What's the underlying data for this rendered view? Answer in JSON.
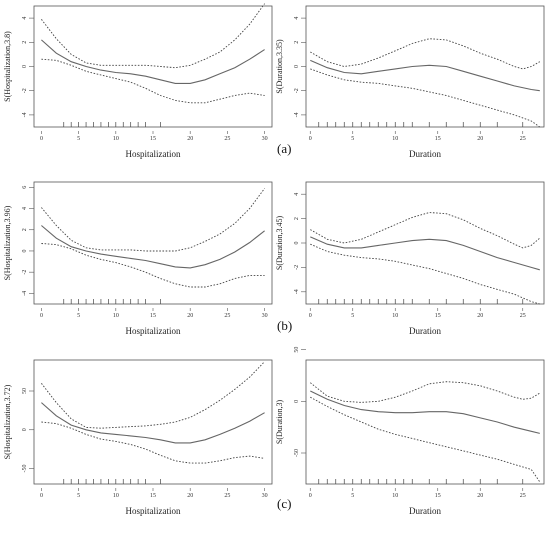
{
  "chart_data": [
    {
      "type": "line",
      "row": 0,
      "col": 0,
      "xlabel": "Hospitalization",
      "ylabel": "S(Hospitalization,3.8)",
      "xticks": [
        0,
        5,
        10,
        15,
        20,
        25,
        30
      ],
      "yticks": [
        -4,
        -2,
        0,
        2,
        4
      ],
      "xlim": [
        -1,
        31
      ],
      "ylim": [
        -5,
        5
      ],
      "rug": [
        3,
        4,
        5,
        6,
        7,
        8,
        9,
        10,
        11,
        12,
        13,
        14,
        16
      ],
      "series": [
        {
          "style": "solid",
          "x": [
            0,
            2,
            4,
            6,
            8,
            10,
            12,
            14,
            16,
            18,
            20,
            22,
            24,
            26,
            28,
            30
          ],
          "y": [
            2.2,
            1.1,
            0.4,
            0,
            -0.3,
            -0.5,
            -0.6,
            -0.8,
            -1.1,
            -1.4,
            -1.4,
            -1.1,
            -0.6,
            -0.1,
            0.6,
            1.4
          ]
        },
        {
          "style": "dotted",
          "x": [
            0,
            2,
            4,
            6,
            8,
            10,
            12,
            14,
            16,
            18,
            20,
            22,
            24,
            26,
            28,
            30
          ],
          "y": [
            3.9,
            2.3,
            1.0,
            0.3,
            0.1,
            0.1,
            0.1,
            0.1,
            0,
            -0.1,
            0.1,
            0.6,
            1.2,
            2.2,
            3.5,
            5.2
          ]
        },
        {
          "style": "dotted",
          "x": [
            0,
            2,
            4,
            6,
            8,
            10,
            12,
            14,
            16,
            18,
            20,
            22,
            24,
            26,
            28,
            30
          ],
          "y": [
            0.6,
            0.5,
            0.1,
            -0.4,
            -0.7,
            -1.0,
            -1.3,
            -1.8,
            -2.4,
            -2.8,
            -3.0,
            -3.0,
            -2.7,
            -2.4,
            -2.2,
            -2.4
          ]
        }
      ]
    },
    {
      "type": "line",
      "row": 0,
      "col": 1,
      "xlabel": "Duration",
      "ylabel": "S(Duration,3.35)",
      "xticks": [
        0,
        5,
        10,
        15,
        20,
        25
      ],
      "yticks": [
        -4,
        -2,
        0,
        2,
        4
      ],
      "xlim": [
        -0.5,
        27.5
      ],
      "ylim": [
        -5,
        5
      ],
      "rug": [
        1,
        2,
        3,
        4,
        5,
        6,
        7,
        8,
        9,
        10,
        11,
        12,
        14,
        16,
        18,
        20,
        22,
        25
      ],
      "series": [
        {
          "style": "solid",
          "x": [
            0,
            2,
            4,
            6,
            8,
            10,
            12,
            14,
            16,
            18,
            20,
            22,
            24,
            26,
            27
          ],
          "y": [
            0.5,
            -0.1,
            -0.5,
            -0.6,
            -0.4,
            -0.2,
            0,
            0.1,
            0,
            -0.4,
            -0.8,
            -1.2,
            -1.6,
            -1.9,
            -2.0
          ]
        },
        {
          "style": "dotted",
          "x": [
            0,
            2,
            4,
            6,
            8,
            10,
            12,
            14,
            16,
            18,
            20,
            22,
            24,
            25,
            26,
            27
          ],
          "y": [
            1.2,
            0.4,
            0,
            0.2,
            0.7,
            1.3,
            1.9,
            2.3,
            2.2,
            1.7,
            1.1,
            0.6,
            0,
            -0.2,
            0,
            0.4
          ]
        },
        {
          "style": "dotted",
          "x": [
            0,
            2,
            4,
            6,
            8,
            10,
            12,
            14,
            16,
            18,
            20,
            22,
            24,
            26,
            27
          ],
          "y": [
            -0.2,
            -0.7,
            -1.1,
            -1.3,
            -1.4,
            -1.6,
            -1.8,
            -2.1,
            -2.4,
            -2.8,
            -3.2,
            -3.6,
            -4.0,
            -4.5,
            -5.0
          ]
        }
      ]
    },
    {
      "type": "line",
      "row": 1,
      "col": 0,
      "xlabel": "Hospitalization",
      "ylabel": "S(Hospitalization,3.96)",
      "xticks": [
        0,
        5,
        10,
        15,
        20,
        25,
        30
      ],
      "yticks": [
        -4,
        -2,
        0,
        2,
        4,
        6
      ],
      "xlim": [
        -1,
        31
      ],
      "ylim": [
        -5,
        6.5
      ],
      "rug": [
        3,
        4,
        5,
        6,
        7,
        8,
        9,
        10,
        11,
        12,
        13,
        14,
        16
      ],
      "series": [
        {
          "style": "solid",
          "x": [
            0,
            2,
            4,
            6,
            8,
            10,
            12,
            14,
            16,
            18,
            20,
            22,
            24,
            26,
            28,
            30
          ],
          "y": [
            2.4,
            1.2,
            0.4,
            0,
            -0.3,
            -0.5,
            -0.7,
            -0.9,
            -1.2,
            -1.5,
            -1.6,
            -1.3,
            -0.8,
            -0.1,
            0.8,
            1.9
          ]
        },
        {
          "style": "dotted",
          "x": [
            0,
            2,
            4,
            6,
            8,
            10,
            12,
            14,
            16,
            18,
            20,
            22,
            24,
            26,
            28,
            30
          ],
          "y": [
            4.1,
            2.4,
            1.0,
            0.3,
            0.1,
            0.1,
            0.1,
            0,
            0,
            0,
            0.3,
            0.9,
            1.6,
            2.6,
            4.0,
            5.9
          ]
        },
        {
          "style": "dotted",
          "x": [
            0,
            2,
            4,
            6,
            8,
            10,
            12,
            14,
            16,
            18,
            20,
            22,
            24,
            26,
            28,
            30
          ],
          "y": [
            0.7,
            0.6,
            0.2,
            -0.4,
            -0.8,
            -1.1,
            -1.5,
            -2.0,
            -2.6,
            -3.1,
            -3.4,
            -3.4,
            -3.1,
            -2.6,
            -2.3,
            -2.3
          ]
        }
      ]
    },
    {
      "type": "line",
      "row": 1,
      "col": 1,
      "xlabel": "Duration",
      "ylabel": "S(Duration,3.45)",
      "xticks": [
        0,
        5,
        10,
        15,
        20,
        25
      ],
      "yticks": [
        -4,
        -2,
        0,
        2,
        4
      ],
      "xlim": [
        -0.5,
        27.5
      ],
      "ylim": [
        -5,
        5
      ],
      "rug": [
        1,
        2,
        3,
        4,
        5,
        6,
        7,
        8,
        9,
        10,
        11,
        12,
        14,
        16,
        18,
        20,
        22,
        25
      ],
      "series": [
        {
          "style": "solid",
          "x": [
            0,
            2,
            4,
            6,
            8,
            10,
            12,
            14,
            16,
            18,
            20,
            22,
            24,
            26,
            27
          ],
          "y": [
            0.5,
            -0.1,
            -0.4,
            -0.4,
            -0.2,
            0,
            0.2,
            0.3,
            0.2,
            -0.2,
            -0.7,
            -1.2,
            -1.6,
            -2.0,
            -2.2
          ]
        },
        {
          "style": "dotted",
          "x": [
            0,
            2,
            4,
            6,
            8,
            10,
            12,
            14,
            16,
            18,
            20,
            22,
            24,
            25,
            26,
            27
          ],
          "y": [
            1.1,
            0.3,
            0,
            0.3,
            0.9,
            1.5,
            2.1,
            2.5,
            2.4,
            1.9,
            1.2,
            0.6,
            -0.1,
            -0.4,
            -0.2,
            0.4
          ]
        },
        {
          "style": "dotted",
          "x": [
            0,
            2,
            4,
            6,
            8,
            10,
            12,
            14,
            16,
            18,
            20,
            22,
            24,
            26,
            27
          ],
          "y": [
            -0.1,
            -0.7,
            -1.0,
            -1.2,
            -1.3,
            -1.5,
            -1.8,
            -2.1,
            -2.5,
            -2.9,
            -3.4,
            -3.8,
            -4.2,
            -4.8,
            -5.0
          ]
        }
      ]
    },
    {
      "type": "line",
      "row": 2,
      "col": 0,
      "xlabel": "Hospitalization",
      "ylabel": "S(Hospitalization,3.72)",
      "xticks": [
        0,
        5,
        10,
        15,
        20,
        25,
        30
      ],
      "yticks": [
        -50,
        0,
        50
      ],
      "xlim": [
        -1,
        31
      ],
      "ylim": [
        -70,
        90
      ],
      "rug": [
        3,
        4,
        5,
        6,
        7,
        8,
        9,
        10,
        11,
        12,
        13,
        14,
        16
      ],
      "series": [
        {
          "style": "solid",
          "x": [
            0,
            2,
            4,
            6,
            8,
            10,
            12,
            14,
            16,
            18,
            20,
            22,
            24,
            26,
            28,
            30
          ],
          "y": [
            35,
            18,
            6,
            0,
            -4,
            -6,
            -8,
            -10,
            -13,
            -17,
            -17,
            -13,
            -6,
            2,
            11,
            22
          ]
        },
        {
          "style": "dotted",
          "x": [
            0,
            2,
            4,
            6,
            8,
            10,
            12,
            14,
            16,
            18,
            20,
            22,
            24,
            26,
            28,
            30
          ],
          "y": [
            60,
            35,
            14,
            3,
            2,
            3,
            4,
            5,
            7,
            10,
            16,
            26,
            38,
            52,
            68,
            88
          ]
        },
        {
          "style": "dotted",
          "x": [
            0,
            2,
            4,
            6,
            8,
            10,
            12,
            14,
            16,
            18,
            20,
            22,
            24,
            26,
            28,
            30
          ],
          "y": [
            10,
            8,
            2,
            -6,
            -12,
            -15,
            -19,
            -25,
            -33,
            -40,
            -43,
            -43,
            -40,
            -36,
            -34,
            -37
          ]
        }
      ]
    },
    {
      "type": "line",
      "row": 2,
      "col": 1,
      "xlabel": "Duration",
      "ylabel": "S(Duration,3)",
      "xticks": [
        0,
        5,
        10,
        15,
        20,
        25
      ],
      "yticks": [
        -50,
        0,
        50
      ],
      "xlim": [
        -0.5,
        27.5
      ],
      "ylim": [
        -80,
        40
      ],
      "rug": [
        1,
        2,
        3,
        4,
        5,
        6,
        7,
        8,
        9,
        10,
        11,
        12,
        14,
        16,
        18,
        20,
        22,
        25
      ],
      "series": [
        {
          "style": "solid",
          "x": [
            0,
            2,
            4,
            6,
            8,
            10,
            12,
            14,
            16,
            18,
            20,
            22,
            24,
            26,
            27
          ],
          "y": [
            10,
            2,
            -4,
            -8,
            -10,
            -11,
            -11,
            -10,
            -10,
            -12,
            -16,
            -20,
            -25,
            -29,
            -31
          ]
        },
        {
          "style": "dotted",
          "x": [
            0,
            2,
            4,
            6,
            8,
            10,
            12,
            14,
            16,
            18,
            20,
            22,
            24,
            25,
            26,
            27
          ],
          "y": [
            18,
            5,
            0,
            -1,
            0,
            4,
            10,
            17,
            19,
            18,
            15,
            10,
            4,
            2,
            3,
            8
          ]
        },
        {
          "style": "dotted",
          "x": [
            0,
            2,
            4,
            6,
            8,
            10,
            12,
            14,
            16,
            18,
            20,
            22,
            24,
            26,
            27
          ],
          "y": [
            4,
            -5,
            -13,
            -20,
            -27,
            -32,
            -36,
            -40,
            -44,
            -48,
            -52,
            -56,
            -61,
            -66,
            -78
          ]
        }
      ]
    }
  ],
  "panel_labels": [
    "(a)",
    "(b)",
    "(c)"
  ]
}
